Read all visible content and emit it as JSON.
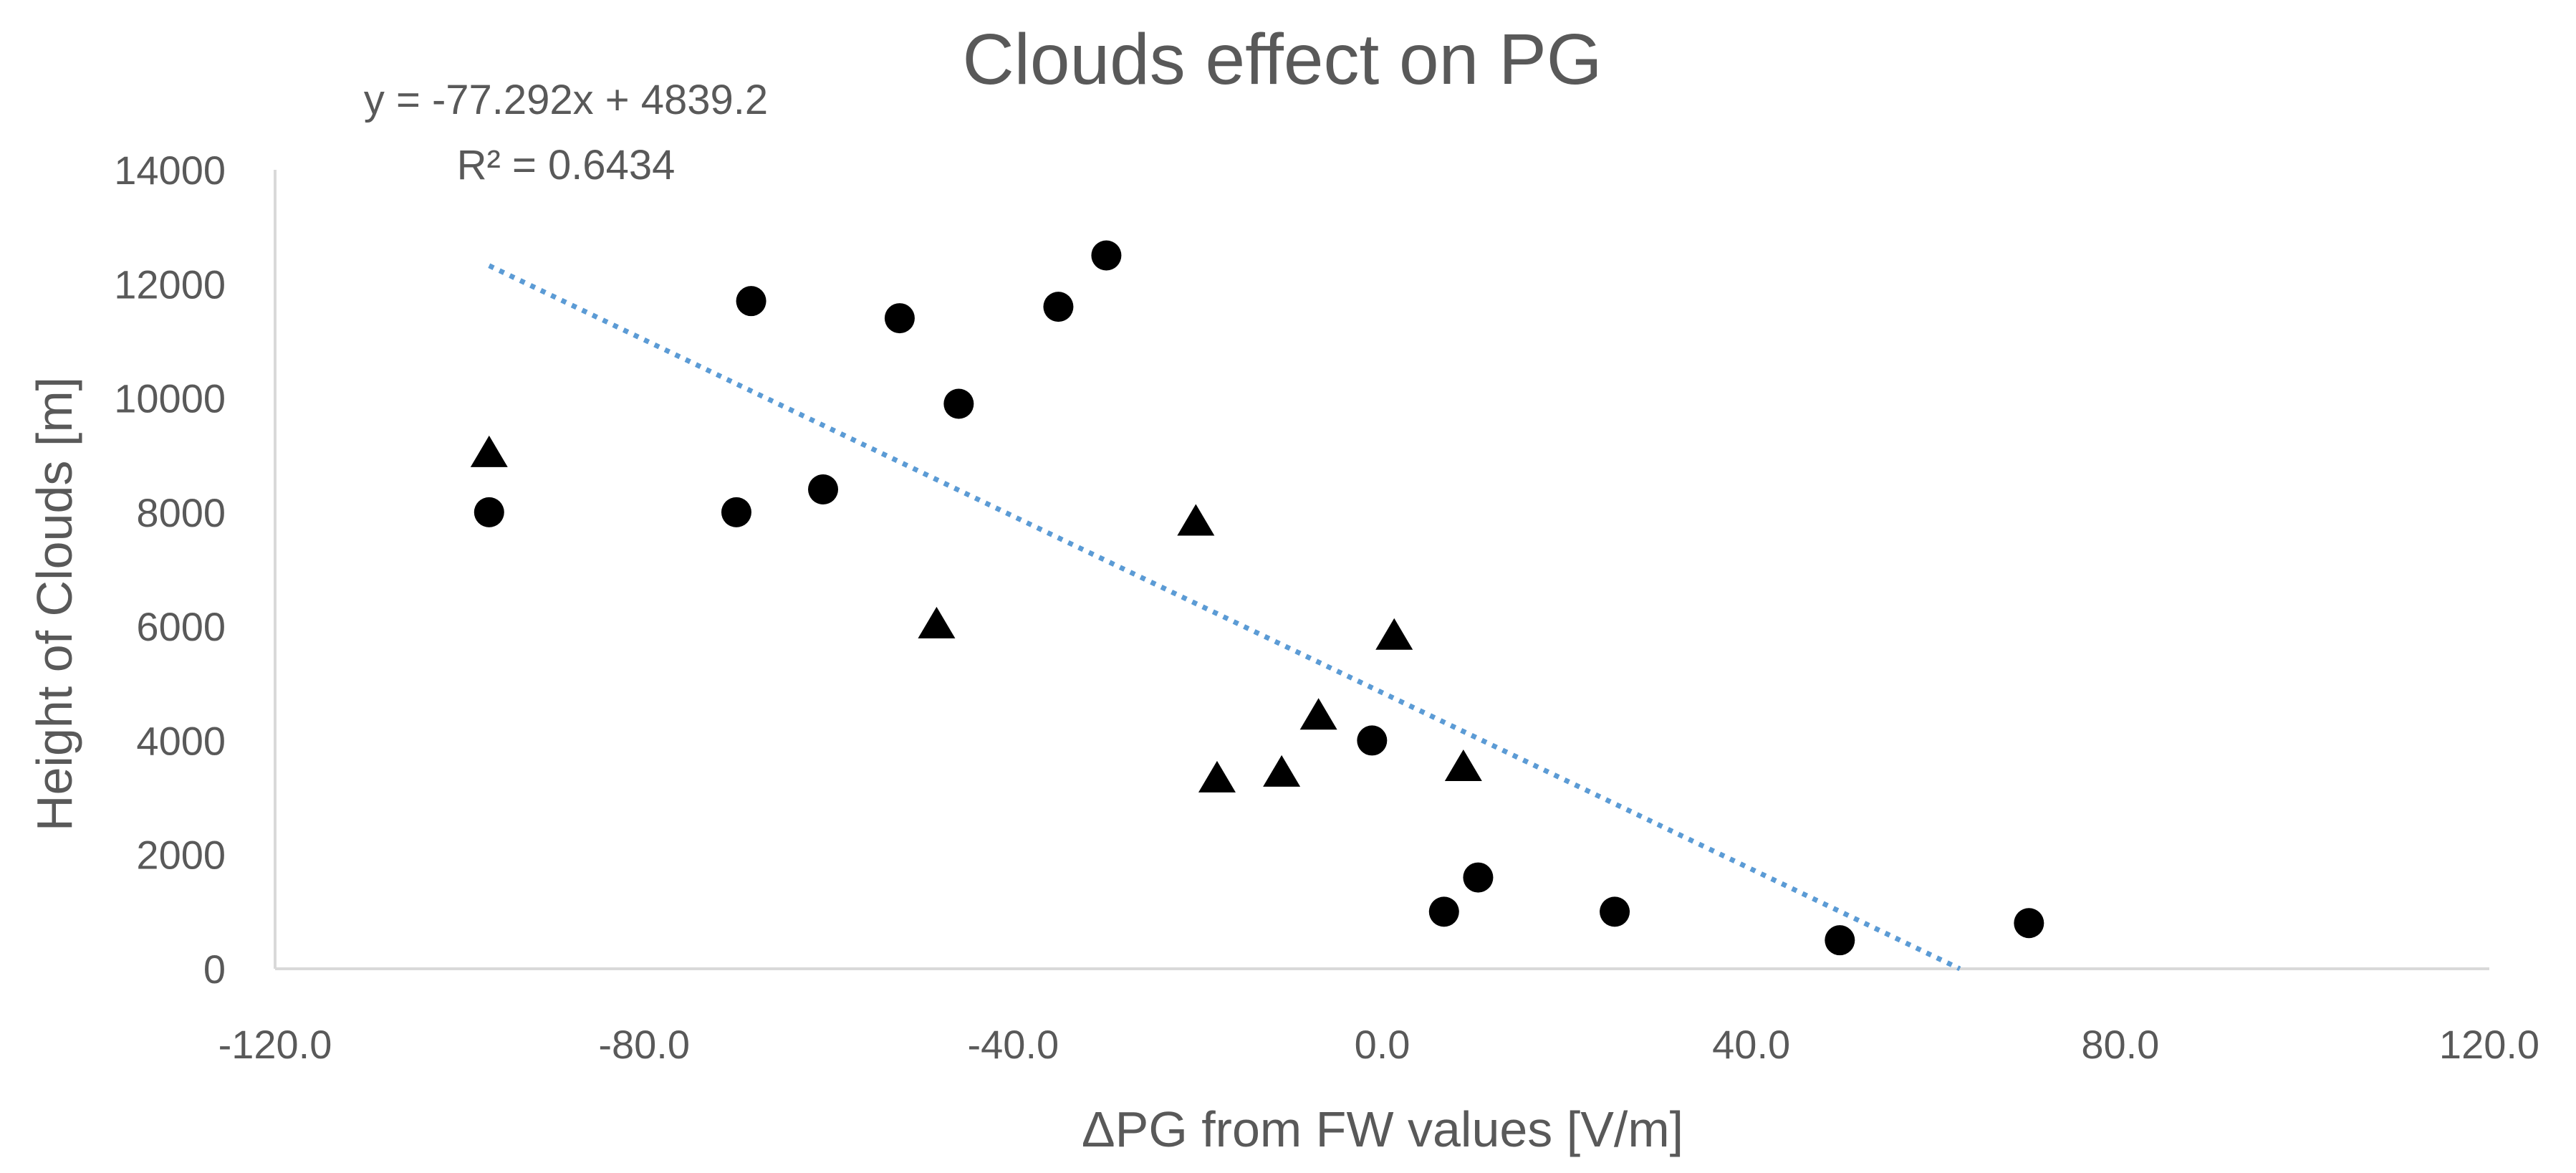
{
  "chart_data": {
    "type": "scatter",
    "title": "Clouds effect on PG",
    "xlabel": "ΔPG from FW values [V/m]",
    "ylabel": "Height of Clouds [m]",
    "xlim": [
      -120,
      120
    ],
    "ylim": [
      0,
      14000
    ],
    "x_ticks": [
      -120,
      -80,
      -40,
      0,
      40,
      80,
      120
    ],
    "x_tick_labels": [
      "-120.0",
      "-80.0",
      "-40.0",
      "0.0",
      "40.0",
      "80.0",
      "120.0"
    ],
    "y_ticks": [
      0,
      2000,
      4000,
      6000,
      8000,
      10000,
      12000,
      14000
    ],
    "y_tick_labels": [
      "0",
      "2000",
      "4000",
      "6000",
      "8000",
      "10000",
      "12000",
      "14000"
    ],
    "grid": false,
    "legend": null,
    "series": [
      {
        "name": "circles",
        "marker": "circle",
        "color": "#000000",
        "points": [
          {
            "x": -96.8,
            "y": 8000
          },
          {
            "x": -70.0,
            "y": 8000
          },
          {
            "x": -68.4,
            "y": 11700
          },
          {
            "x": -60.6,
            "y": 8400
          },
          {
            "x": -52.3,
            "y": 11400
          },
          {
            "x": -45.9,
            "y": 9900
          },
          {
            "x": -35.1,
            "y": 11600
          },
          {
            "x": -29.9,
            "y": 12500
          },
          {
            "x": -1.1,
            "y": 4000
          },
          {
            "x": 6.7,
            "y": 1000
          },
          {
            "x": 10.4,
            "y": 1600
          },
          {
            "x": 25.2,
            "y": 1000
          },
          {
            "x": 49.6,
            "y": 500
          },
          {
            "x": 70.1,
            "y": 800
          }
        ]
      },
      {
        "name": "triangles",
        "marker": "triangle",
        "color": "#000000",
        "points": [
          {
            "x": -96.8,
            "y": 9000
          },
          {
            "x": -48.3,
            "y": 6000
          },
          {
            "x": -20.2,
            "y": 7800
          },
          {
            "x": -17.9,
            "y": 3300
          },
          {
            "x": -10.9,
            "y": 3400
          },
          {
            "x": -6.9,
            "y": 4400
          },
          {
            "x": 1.3,
            "y": 5800
          },
          {
            "x": 8.8,
            "y": 3500
          }
        ]
      }
    ],
    "trendline": {
      "type": "linear",
      "slope": -77.292,
      "intercept": 4839.2,
      "x_start": -96.8,
      "color": "#5b9bd5",
      "style": "dotted"
    },
    "annotations": {
      "equation": "y = -77.292x + 4839.2",
      "r_squared": "R² = 0.6434"
    }
  }
}
